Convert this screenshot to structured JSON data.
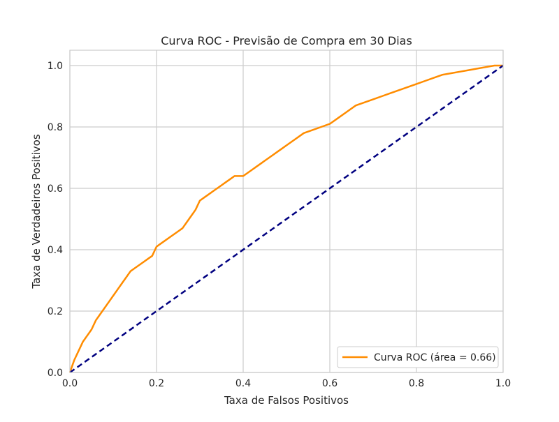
{
  "chart_data": {
    "type": "line",
    "title": "Curva ROC - Previsão de Compra em 30 Dias",
    "xlabel": "Taxa de Falsos Positivos",
    "ylabel": "Taxa de Verdadeiros Positivos",
    "xlim": [
      0.0,
      1.0
    ],
    "ylim": [
      0.0,
      1.05
    ],
    "xticks": [
      "0.0",
      "0.2",
      "0.4",
      "0.6",
      "0.8",
      "1.0"
    ],
    "yticks": [
      "0.0",
      "0.2",
      "0.4",
      "0.6",
      "0.8",
      "1.0"
    ],
    "grid": true,
    "legend_position": "lower right",
    "series": [
      {
        "name": "Curva ROC (área = 0.66)",
        "color": "#ff8c00",
        "style": "solid",
        "x": [
          0.0,
          0.005,
          0.01,
          0.02,
          0.03,
          0.04,
          0.05,
          0.06,
          0.07,
          0.08,
          0.09,
          0.1,
          0.11,
          0.12,
          0.13,
          0.14,
          0.15,
          0.16,
          0.17,
          0.18,
          0.19,
          0.2,
          0.21,
          0.22,
          0.23,
          0.24,
          0.25,
          0.26,
          0.27,
          0.28,
          0.29,
          0.3,
          0.31,
          0.32,
          0.33,
          0.34,
          0.35,
          0.36,
          0.37,
          0.38,
          0.39,
          0.4,
          0.41,
          0.42,
          0.43,
          0.44,
          0.45,
          0.46,
          0.47,
          0.48,
          0.49,
          0.5,
          0.52,
          0.54,
          0.56,
          0.58,
          0.6,
          0.62,
          0.64,
          0.66,
          0.68,
          0.7,
          0.72,
          0.74,
          0.76,
          0.78,
          0.8,
          0.82,
          0.84,
          0.86,
          0.88,
          0.9,
          0.92,
          0.94,
          0.96,
          0.98,
          1.0
        ],
        "y": [
          0.0,
          0.02,
          0.04,
          0.07,
          0.1,
          0.12,
          0.14,
          0.17,
          0.19,
          0.21,
          0.23,
          0.25,
          0.27,
          0.29,
          0.31,
          0.33,
          0.34,
          0.35,
          0.36,
          0.37,
          0.38,
          0.41,
          0.42,
          0.43,
          0.44,
          0.45,
          0.46,
          0.47,
          0.49,
          0.51,
          0.53,
          0.56,
          0.57,
          0.58,
          0.59,
          0.6,
          0.61,
          0.62,
          0.63,
          0.64,
          0.64,
          0.64,
          0.65,
          0.66,
          0.67,
          0.68,
          0.69,
          0.7,
          0.71,
          0.72,
          0.73,
          0.74,
          0.76,
          0.78,
          0.79,
          0.8,
          0.81,
          0.83,
          0.85,
          0.87,
          0.88,
          0.89,
          0.9,
          0.91,
          0.92,
          0.93,
          0.94,
          0.95,
          0.96,
          0.97,
          0.975,
          0.98,
          0.985,
          0.99,
          0.995,
          1.0,
          1.0
        ]
      },
      {
        "name": "",
        "color": "#000080",
        "style": "dashed",
        "x": [
          0.0,
          1.0
        ],
        "y": [
          0.0,
          1.0
        ]
      }
    ]
  }
}
